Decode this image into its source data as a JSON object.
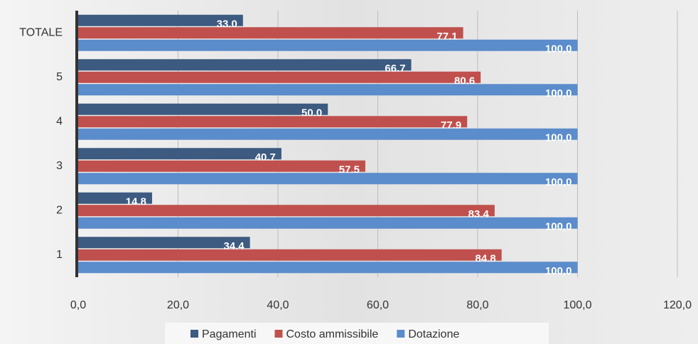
{
  "chart_data": {
    "type": "barh",
    "categories": [
      "1",
      "2",
      "3",
      "4",
      "5",
      "TOTALE"
    ],
    "series": [
      {
        "name": "Pagamenti",
        "color": "#3d5a80",
        "values": [
          34.4,
          14.8,
          40.7,
          50.0,
          66.7,
          33.0
        ],
        "value_labels": [
          "34,4",
          "14,8",
          "40,7",
          "50,0",
          "66,7",
          "33,0"
        ]
      },
      {
        "name": "Costo ammissibile",
        "color": "#c0504d",
        "values": [
          84.8,
          83.4,
          57.5,
          77.9,
          80.6,
          77.1
        ],
        "value_labels": [
          "84,8",
          "83,4",
          "57,5",
          "77,9",
          "80,6",
          "77,1"
        ]
      },
      {
        "name": "Dotazione",
        "color": "#5b8ccb",
        "values": [
          100.0,
          100.0,
          100.0,
          100.0,
          100.0,
          100.0
        ],
        "value_labels": [
          "100,0",
          "100,0",
          "100,0",
          "100,0",
          "100,0",
          "100,0"
        ]
      }
    ],
    "xlim": [
      0,
      120
    ],
    "xticks": [
      {
        "value": 0,
        "label": "0,0"
      },
      {
        "value": 20,
        "label": "20,0"
      },
      {
        "value": 40,
        "label": "40,0"
      },
      {
        "value": 60,
        "label": "60,0"
      },
      {
        "value": 80,
        "label": "80,0"
      },
      {
        "value": 100,
        "label": "100,0"
      },
      {
        "value": 120,
        "label": "120,0"
      }
    ],
    "grid": true,
    "legend": "bottom"
  }
}
